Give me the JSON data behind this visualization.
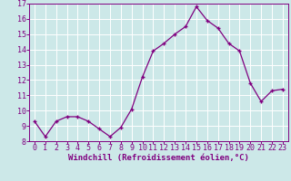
{
  "x": [
    0,
    1,
    2,
    3,
    4,
    5,
    6,
    7,
    8,
    9,
    10,
    11,
    12,
    13,
    14,
    15,
    16,
    17,
    18,
    19,
    20,
    21,
    22,
    23
  ],
  "y": [
    9.3,
    8.3,
    9.3,
    9.6,
    9.6,
    9.3,
    8.8,
    8.3,
    8.9,
    10.1,
    12.2,
    13.9,
    14.4,
    15.0,
    15.5,
    16.8,
    15.9,
    15.4,
    14.4,
    13.9,
    11.8,
    10.6,
    11.3,
    11.4
  ],
  "line_color": "#800080",
  "marker": "+",
  "bg_color": "#cce8e8",
  "grid_color": "#ffffff",
  "xlabel": "Windchill (Refroidissement éolien,°C)",
  "ylim": [
    8,
    17
  ],
  "xlim_min": -0.5,
  "xlim_max": 23.5,
  "yticks": [
    8,
    9,
    10,
    11,
    12,
    13,
    14,
    15,
    16,
    17
  ],
  "xticks": [
    0,
    1,
    2,
    3,
    4,
    5,
    6,
    7,
    8,
    9,
    10,
    11,
    12,
    13,
    14,
    15,
    16,
    17,
    18,
    19,
    20,
    21,
    22,
    23
  ],
  "tick_color": "#800080",
  "label_color": "#800080",
  "spine_color": "#800080",
  "tick_fontsize": 6,
  "xlabel_fontsize": 6.5
}
